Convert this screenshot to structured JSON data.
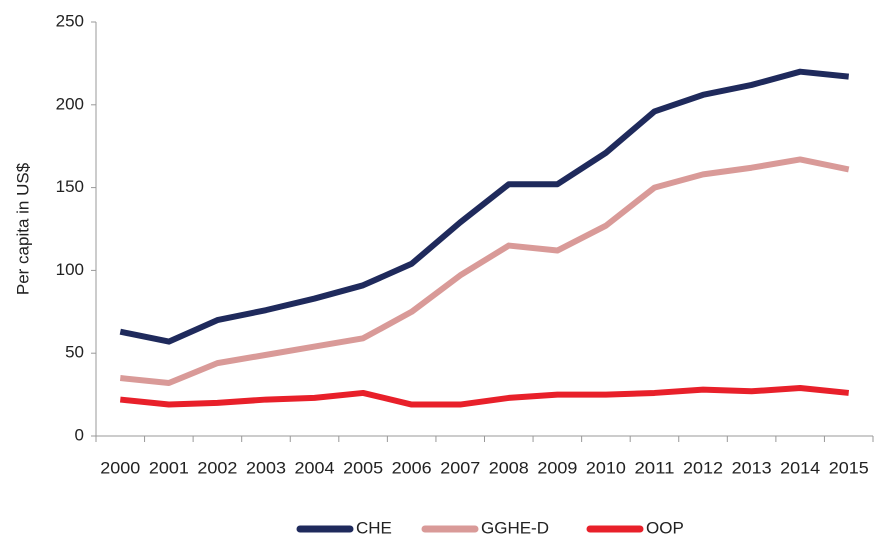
{
  "chart_data": {
    "type": "line",
    "y_label": "Per capita in US$",
    "categories": [
      "2000",
      "2001",
      "2002",
      "2003",
      "2004",
      "2005",
      "2006",
      "2007",
      "2008",
      "2009",
      "2010",
      "2011",
      "2012",
      "2013",
      "2014",
      "2015"
    ],
    "series": [
      {
        "name": "CHE",
        "color": "#1f2a5c",
        "values": [
          63,
          57,
          70,
          76,
          83,
          91,
          104,
          129,
          152,
          152,
          171,
          196,
          206,
          212,
          220,
          217
        ]
      },
      {
        "name": "GGHE-D",
        "color": "#d99a98",
        "values": [
          35,
          32,
          44,
          49,
          54,
          59,
          75,
          97,
          115,
          112,
          127,
          150,
          158,
          162,
          167,
          161
        ]
      },
      {
        "name": "OOP",
        "color": "#e8202a",
        "values": [
          22,
          19,
          20,
          22,
          23,
          26,
          19,
          19,
          23,
          25,
          25,
          26,
          28,
          27,
          29,
          26
        ]
      }
    ],
    "ylim": [
      0,
      250
    ],
    "yticks": [
      0,
      50,
      100,
      150,
      200,
      250
    ],
    "legend": "bottom"
  }
}
